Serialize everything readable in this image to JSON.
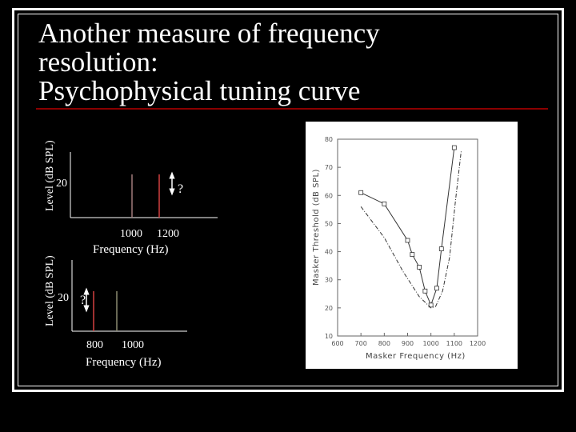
{
  "slide": {
    "title_lines": [
      "Another measure of frequency",
      "resolution:",
      "Psychophysical tuning curve"
    ]
  },
  "chart_data": [
    {
      "type": "line",
      "title": "",
      "xlabel": "Frequency (Hz)",
      "ylabel": "Level (dB SPL)",
      "x_tick_labels": [
        "1000",
        "1200"
      ],
      "y_tick_labels": [
        "20"
      ],
      "series": [
        {
          "x": 1000,
          "y": 20,
          "label": ""
        },
        {
          "x": 1200,
          "y": null,
          "label": "?"
        }
      ],
      "arrow": "double-vertical",
      "colors": {
        "probe": "#a07a7a",
        "masker": "#d24040"
      }
    },
    {
      "type": "line",
      "title": "",
      "xlabel": "Frequency (Hz)",
      "ylabel": "Level (dB SPL)",
      "x_tick_labels": [
        "800",
        "1000"
      ],
      "y_tick_labels": [
        "20"
      ],
      "series": [
        {
          "x": 800,
          "y": null,
          "label": "?"
        },
        {
          "x": 1000,
          "y": 20,
          "label": ""
        }
      ],
      "arrow": "double-vertical",
      "colors": {
        "masker": "#d24040",
        "probe": "#8a8a70"
      }
    },
    {
      "type": "line",
      "title": "",
      "xlabel": "Masker Frequency (Hz)",
      "ylabel": "Masker Threshold (dB SPL)",
      "xlim": [
        600,
        1200
      ],
      "ylim": [
        10,
        80
      ],
      "x_ticks": [
        600,
        700,
        800,
        900,
        1000,
        1100,
        1200
      ],
      "x_tick_labels": [
        "600",
        "700",
        "800",
        "900",
        "1000",
        "1100",
        "1200"
      ],
      "y_ticks": [
        10,
        20,
        30,
        40,
        50,
        60,
        70,
        80
      ],
      "y_tick_labels": [
        "10",
        "20",
        "30",
        "40",
        "50",
        "60",
        "70",
        "80"
      ],
      "series": [
        {
          "style": "solid-squares",
          "x": [
            700,
            800,
            900,
            920,
            950,
            975,
            1000,
            1025,
            1045,
            1100
          ],
          "y": [
            61,
            57,
            44,
            39,
            34.5,
            26,
            21,
            27,
            41,
            77
          ]
        },
        {
          "style": "dash-dot",
          "x": [
            700,
            800,
            880,
            950,
            1000,
            1020,
            1050,
            1080,
            1105,
            1130
          ],
          "y": [
            56,
            45,
            33,
            24,
            20,
            20.5,
            26,
            38,
            58,
            76
          ]
        }
      ],
      "colors": {
        "ink": "#333333",
        "axis": "#666666"
      }
    }
  ]
}
